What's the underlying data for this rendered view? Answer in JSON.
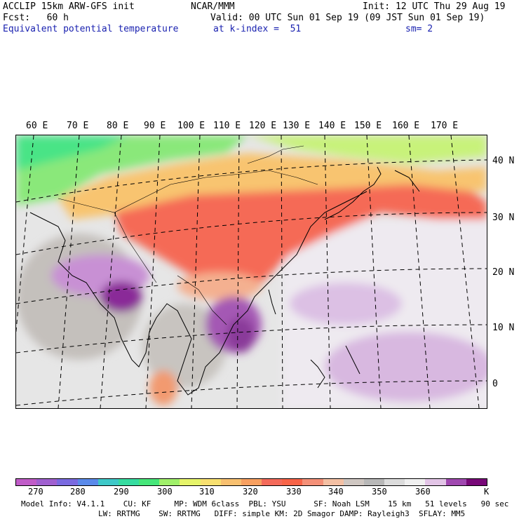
{
  "header": {
    "line1_left": "ACCLIP 15km ARW-GFS init",
    "line1_mid": "NCAR/MMM",
    "line1_right": "Init: 12 UTC Thu 29 Aug 19",
    "line2_left": "Fcst:   60 h",
    "line2_right": "Valid: 00 UTC Sun 01 Sep 19 (09 JST Sun 01 Sep 19)",
    "line3_left": "Equivalent potential temperature",
    "line3_mid": "at k-index =  51",
    "line3_right": "sm= 2"
  },
  "longitudes": [
    "60 E",
    "70 E",
    "80 E",
    "90 E",
    "100 E",
    "110 E",
    "120 E",
    "130 E",
    "140 E",
    "150 E",
    "160 E",
    "170 E"
  ],
  "latitudes": [
    "40 N",
    "30 N",
    "20 N",
    "10 N",
    "0"
  ],
  "colorbar": {
    "ticks": [
      "270",
      "280",
      "290",
      "300",
      "310",
      "320",
      "330",
      "340",
      "350",
      "360",
      "K"
    ],
    "colors": [
      "#c05cc8",
      "#a060d0",
      "#7a6ae0",
      "#5a8aea",
      "#3ec8c8",
      "#36dca0",
      "#46e67a",
      "#a0f06a",
      "#e6f46a",
      "#f8e070",
      "#f8c070",
      "#f8a060",
      "#f46a5a",
      "#f86448",
      "#f49078",
      "#f4c0a4",
      "#cfc7c2",
      "#b8b8b8",
      "#dcdcdc",
      "#f0f0f0",
      "#e2c4e6",
      "#a048b0",
      "#780878"
    ]
  },
  "footer": {
    "line1": "Model Info: V4.1.1    CU: KF     MP: WDM 6class  PBL: YSU      SF: Noah LSM    15 km   51 levels   90 sec",
    "line2": "LW: RRTMG    SW: RRTMG   DIFF: simple KM: 2D Smagor DAMP: Rayleigh3  SFLAY: MM5"
  }
}
